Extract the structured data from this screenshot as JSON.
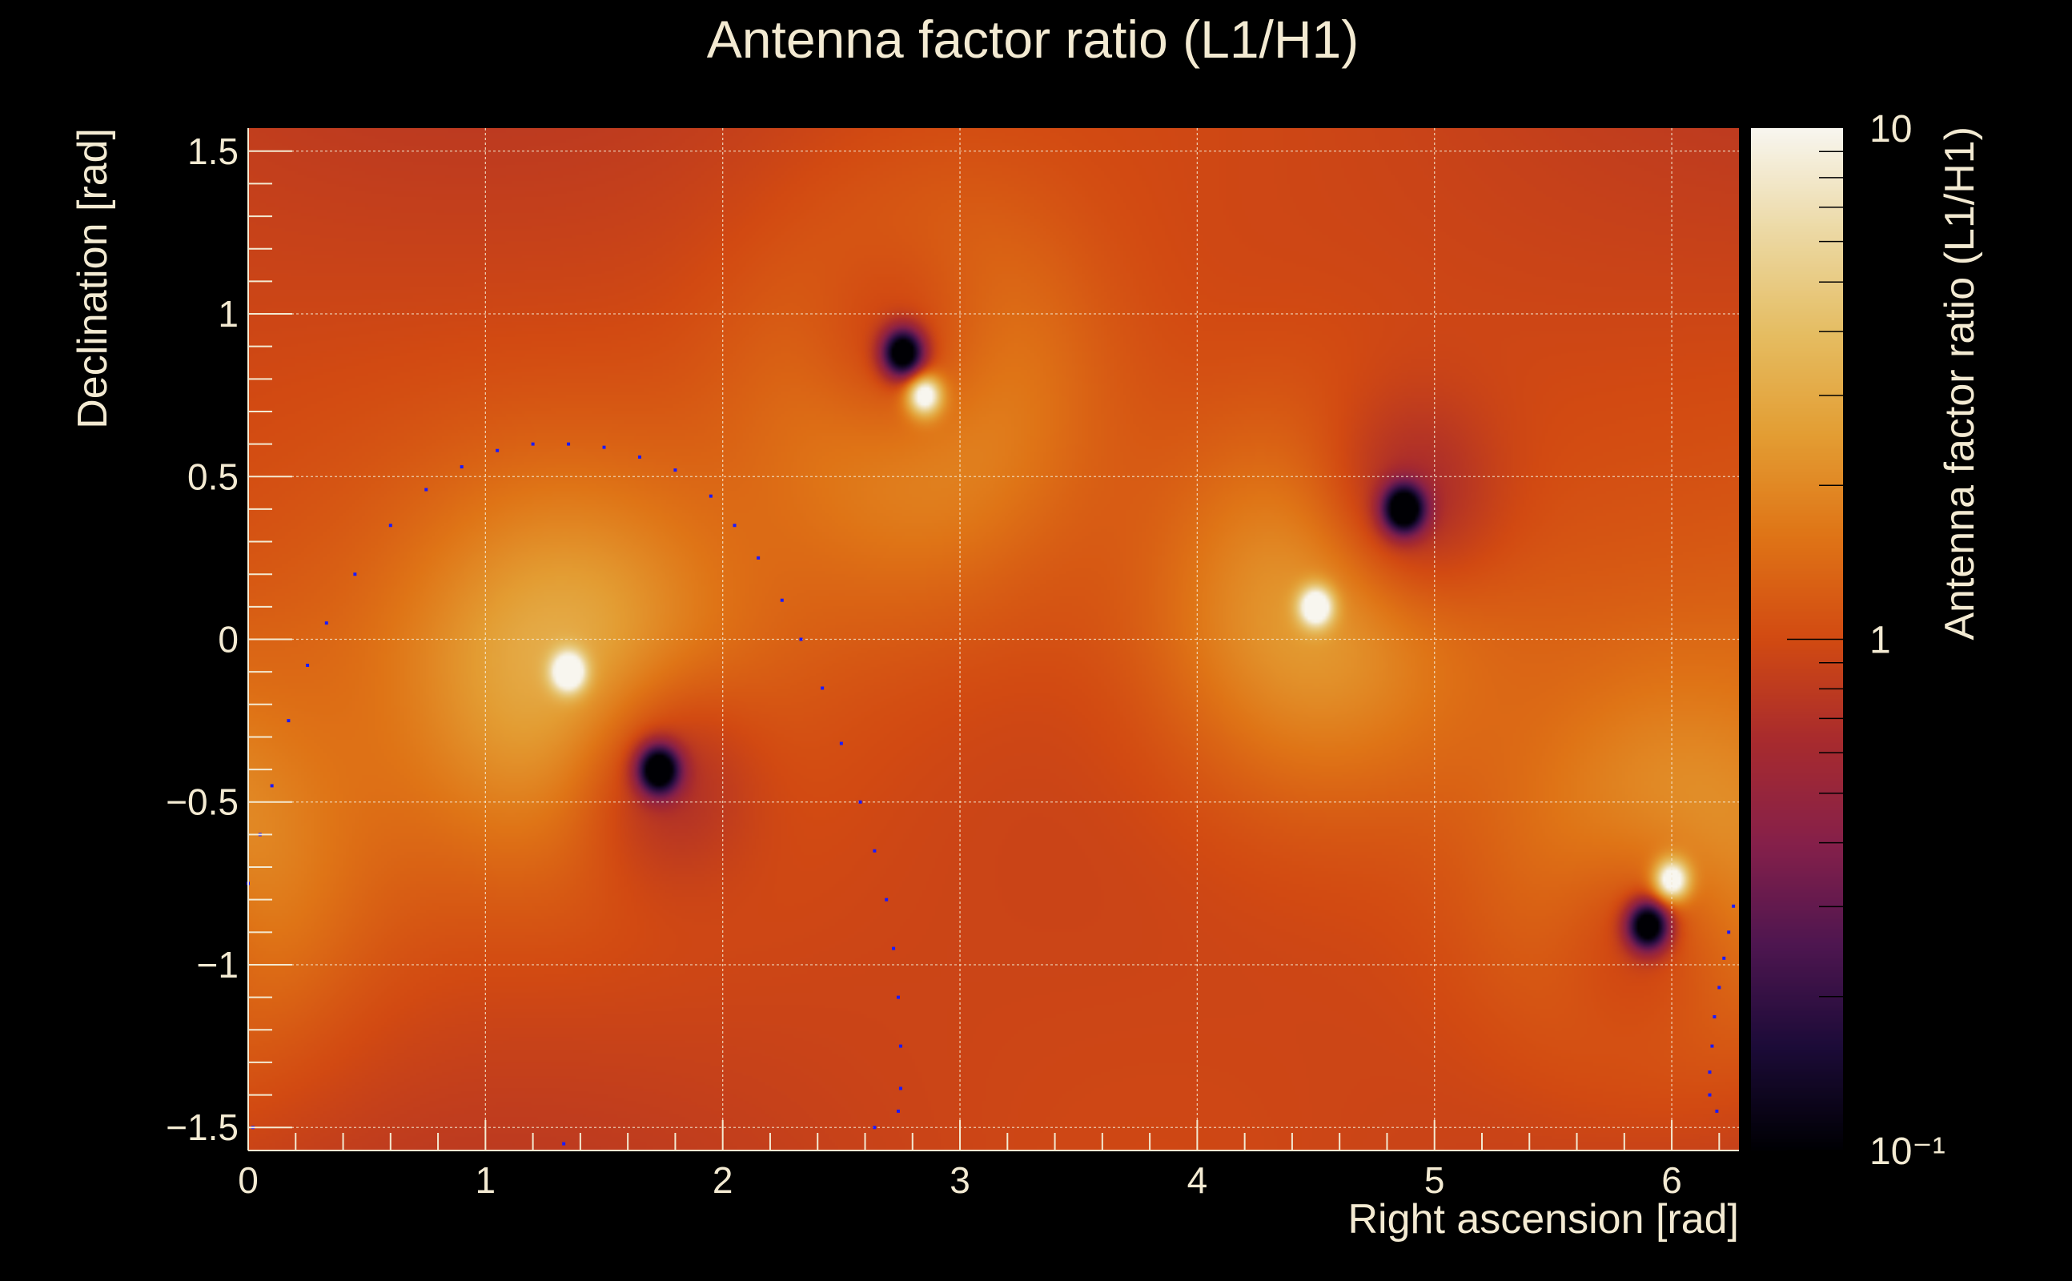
{
  "chart_data": {
    "type": "heatmap",
    "title": "Antenna factor ratio (L1/H1)",
    "xlabel": "Right ascension [rad]",
    "ylabel": "Declination [rad]",
    "zlabel": "Antenna factor ratio (L1/H1)",
    "xlim": [
      0,
      6.2832
    ],
    "ylim": [
      -1.5708,
      1.5708
    ],
    "zlim": [
      0.1,
      10
    ],
    "zscale": "log",
    "grid": true,
    "x_ticks": [
      "0",
      "1",
      "2",
      "3",
      "4",
      "5",
      "6"
    ],
    "x_tick_values": [
      0,
      1,
      2,
      3,
      4,
      5,
      6
    ],
    "y_ticks": [
      "1.5",
      "1",
      "0.5",
      "0",
      "−0.5",
      "−1",
      "−1.5"
    ],
    "y_tick_values": [
      1.5,
      1,
      0.5,
      0,
      -0.5,
      -1,
      -1.5
    ],
    "z_ticks": [
      "10",
      "1",
      "10⁻¹"
    ],
    "z_tick_values": [
      10,
      1,
      0.1
    ],
    "colormap": [
      "#000004",
      "#1c0b38",
      "#4e1650",
      "#86204a",
      "#a82b2e",
      "#d24a12",
      "#df7416",
      "#e39d33",
      "#e5bd62",
      "#ecd9a4",
      "#f8f6ef"
    ],
    "features": [
      {
        "kind": "max",
        "ra": 1.35,
        "dec": -0.1
      },
      {
        "kind": "max",
        "ra": 4.5,
        "dec": 0.1
      },
      {
        "kind": "max",
        "ra": 2.85,
        "dec": 0.75
      },
      {
        "kind": "max",
        "ra": 6.0,
        "dec": -0.74
      },
      {
        "kind": "min",
        "ra": 1.73,
        "dec": -0.4
      },
      {
        "kind": "min",
        "ra": 4.87,
        "dec": 0.4
      },
      {
        "kind": "min",
        "ra": 2.76,
        "dec": 0.88
      },
      {
        "kind": "min",
        "ra": 5.9,
        "dec": -0.88
      }
    ],
    "contour_color": "#1a1aff",
    "contour_points": [
      [
        0.0,
        -0.75
      ],
      [
        0.05,
        -0.6
      ],
      [
        0.1,
        -0.45
      ],
      [
        0.17,
        -0.25
      ],
      [
        0.25,
        -0.08
      ],
      [
        0.33,
        0.05
      ],
      [
        0.45,
        0.2
      ],
      [
        0.6,
        0.35
      ],
      [
        0.75,
        0.46
      ],
      [
        0.9,
        0.53
      ],
      [
        1.05,
        0.58
      ],
      [
        1.2,
        0.6
      ],
      [
        1.35,
        0.6
      ],
      [
        1.5,
        0.59
      ],
      [
        1.65,
        0.56
      ],
      [
        1.8,
        0.52
      ],
      [
        1.95,
        0.44
      ],
      [
        2.05,
        0.35
      ],
      [
        2.15,
        0.25
      ],
      [
        2.25,
        0.12
      ],
      [
        2.33,
        0.0
      ],
      [
        2.42,
        -0.15
      ],
      [
        2.5,
        -0.32
      ],
      [
        2.58,
        -0.5
      ],
      [
        2.64,
        -0.65
      ],
      [
        2.69,
        -0.8
      ],
      [
        2.72,
        -0.95
      ],
      [
        2.74,
        -1.1
      ],
      [
        2.75,
        -1.25
      ],
      [
        2.75,
        -1.38
      ],
      [
        2.74,
        -1.45
      ],
      [
        2.64,
        -1.5
      ],
      [
        1.33,
        -1.55
      ],
      [
        0.02,
        -1.5
      ],
      [
        6.26,
        -0.82
      ],
      [
        6.24,
        -0.9
      ],
      [
        6.22,
        -0.98
      ],
      [
        6.2,
        -1.07
      ],
      [
        6.18,
        -1.16
      ],
      [
        6.17,
        -1.25
      ],
      [
        6.16,
        -1.33
      ],
      [
        6.16,
        -1.4
      ],
      [
        6.19,
        -1.45
      ]
    ]
  }
}
